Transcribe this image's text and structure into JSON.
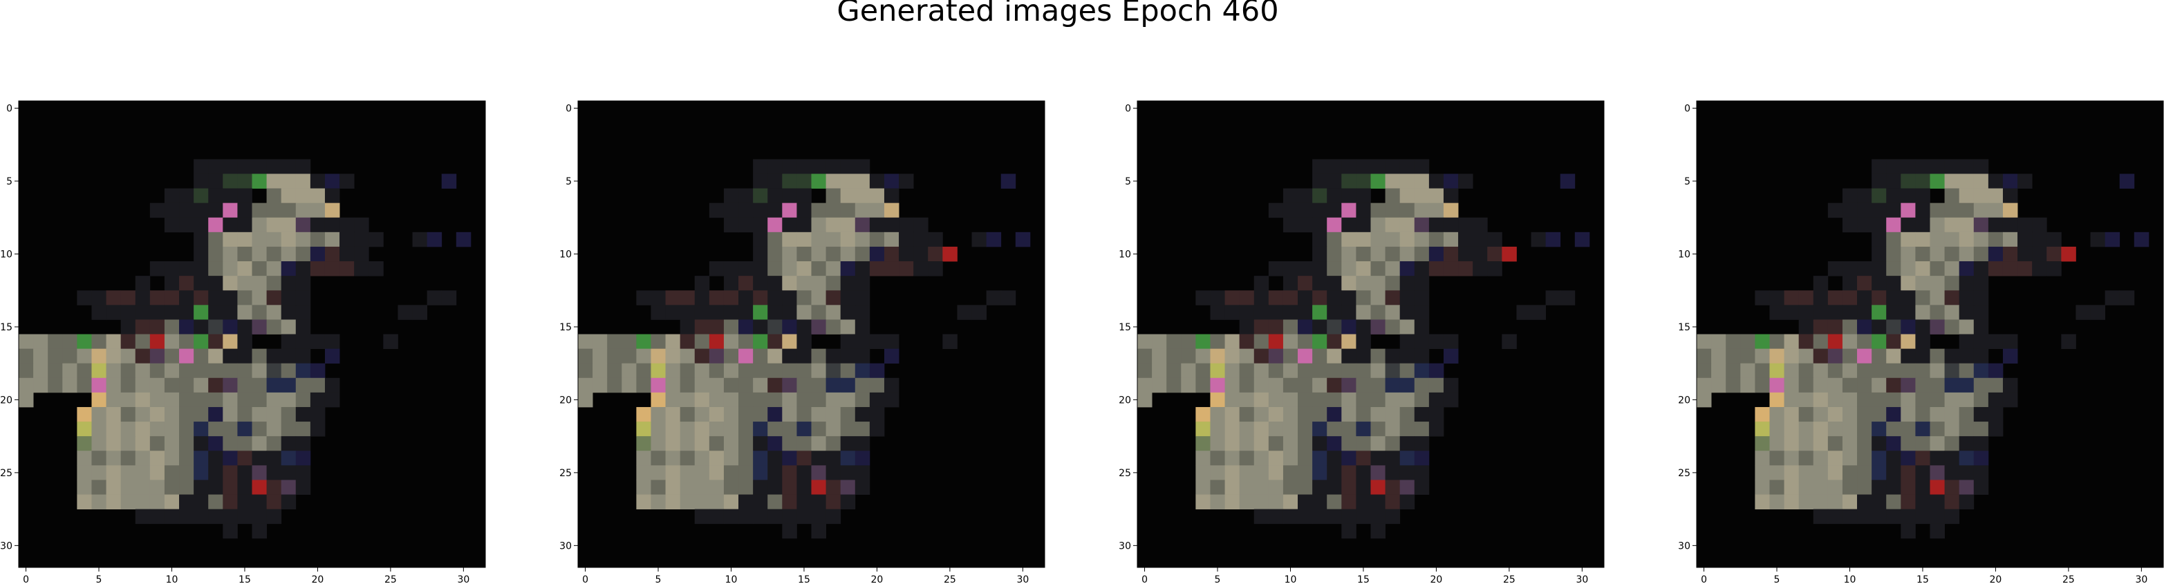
{
  "figure": {
    "suptitle": "Generated images Epoch 460"
  },
  "chart_data": {
    "type": "heatmap",
    "description_of_encoding": "",
    "grid_size": [
      32,
      32
    ],
    "xlim": [
      -0.5,
      31.5
    ],
    "ylim": [
      31.5,
      -0.5
    ],
    "x_ticks": [
      0,
      5,
      10,
      15,
      20,
      25,
      30
    ],
    "y_ticks": [
      0,
      5,
      10,
      15,
      20,
      25,
      30
    ],
    "grid": false,
    "panels": [
      {
        "name": "",
        "palette": [
          "#040404",
          "#1a1a1f",
          "#3a3d3f",
          "#6a6b5e",
          "#8e8d7c",
          "#a39d86",
          "#6f7f58",
          "#2d3f2c",
          "#3d2728",
          "#4e3a52",
          "#222a4b",
          "#1d1b3f",
          "#3f8f3e",
          "#c96aa9",
          "#c7ab7a",
          "#aa2020",
          "#b6b85a",
          "#d8b070",
          "#1e6f7a",
          "#2d1c12"
        ],
        "rows": [
          "00000000000000000000000000000000",
          "00000000000000000000000000000000",
          "00000000000000000000000000000000",
          "00000000000000000000000000000000",
          "00000000000011111111000000000000",
          "0000000000001177c5551b1000000b00",
          "00000000001171110355510000000000",
          "00000000011111d133344e0000000000",
          "0000000000111d1145591111000000000",
          "0000000000001355445434111001b0b0",
          "00000000000013434343b81100000000",
          "000000000111134534b18881100000000",
          "000000001018115443110000000000000",
          "000011881881811348110000000011000",
          "000001111111c1143411000000110000",
          "00000001883b12b19341000000000000",
          "4433c3583f43c8e1001111000100000",
          "34334e54893d351131110b0000000000",
          "34343g4343433333423ab00000000000",
          "44343d43443348933aa3310000000000",
          "40000h4454433343344311000000000",
          "0000h45345433b4344311000000000",
          "0000g4545443a33a343310000000000",
          "0000645453431b3343110000000000",
          "000043434543a1b811ab0000000000",
          "000044544533a1819111000000000",
          "0000435444331181f8910000000000",
          "0000545444511381181000000000000",
          "0000000011111111110000000000000",
          "00000000000000101000000000000000",
          "00000000000000000000000000000000",
          "00000000000000000000000000000000"
        ]
      },
      {
        "name": "",
        "palette": [
          "#040404",
          "#1a1a1f",
          "#3a3d3f",
          "#6a6b5e",
          "#8e8d7c",
          "#a39d86",
          "#6f7f58",
          "#2d3f2c",
          "#3d2728",
          "#4e3a52",
          "#222a4b",
          "#1d1b3f",
          "#3f8f3e",
          "#c96aa9",
          "#c7ab7a",
          "#aa2020",
          "#b6b85a",
          "#d8b070",
          "#1e6f7a",
          "#2d1c12"
        ],
        "rows": [
          "00000000000000000000000000000000",
          "00000000000000000000000000000000",
          "00000000000000000000000000000000",
          "00000000000000000000000000000000",
          "00000000000011111111000000000000",
          "0000000000001177c5551b1000000b00",
          "00000000001171110355510000000000",
          "00000000011111d133344e0000000000",
          "0000000000111d1145591111000000000",
          "0000000000001355445434111001b0b0",
          "00000000000013434343b8118f000000",
          "000000000111134534b18881100000000",
          "000000001018115443110000000000000",
          "000011881881811348110000000011000",
          "000001111111c1143411000000110000",
          "00000001883b12b19341000000000000",
          "4433c3583f43c8e1001111000100000",
          "34334e54893d351131110b0000000000",
          "34343g4343433333423ab00000000000",
          "44343d43443348933aa3310000000000",
          "40000h4454433343344311000000000",
          "0000h45345433b4344311000000000",
          "0000g4545443a33a343310000000000",
          "0000645453431b3343110000000000",
          "000043434543a1b811ab0000000000",
          "000044544533a1819111000000000",
          "0000435444331181f8910000000000",
          "0000545444511381181000000000000",
          "0000000011111111110000000000000",
          "00000000000000101000000000000000",
          "00000000000000000000000000000000",
          "00000000000000000000000000000000"
        ]
      },
      {
        "name": "",
        "palette": [
          "#040404",
          "#1a1a1f",
          "#3a3d3f",
          "#6a6b5e",
          "#8e8d7c",
          "#a39d86",
          "#6f7f58",
          "#2d3f2c",
          "#3d2728",
          "#4e3a52",
          "#222a4b",
          "#1d1b3f",
          "#3f8f3e",
          "#c96aa9",
          "#c7ab7a",
          "#aa2020",
          "#b6b85a",
          "#d8b070",
          "#1e6f7a",
          "#2d1c12"
        ],
        "rows": [
          "00000000000000000000000000000000",
          "00000000000000000000000000000000",
          "00000000000000000000000000000000",
          "00000000000000000000000000000000",
          "00000000000011111111000000000000",
          "0000000000001177c5551b1000000b00",
          "00000000001171110355510000000000",
          "00000000011111d133344e0000000000",
          "0000000000111d1145591111000000000",
          "0000000000001355445434111001b0b0",
          "00000000000013434343b8118f000000",
          "000000000111134534b18881100000000",
          "000000001018115443110000000000000",
          "000011881881811348110000000011000",
          "000001111111c1143411000000110000",
          "00000001883b12b19341000000000000",
          "4433c3583f43c8e1001111000100000",
          "34334e54893d351131110b0000000000",
          "34343g4343433333423ab00000000000",
          "44343d43443348933aa3310000000000",
          "40000h4454433343344311000000000",
          "0000h45345433b4344311000000000",
          "0000g4545443a33a343310000000000",
          "0000645453431b3343110000000000",
          "000043434543a1b811ab0000000000",
          "000044544533a1819111000000000",
          "0000435444331181f8910000000000",
          "0000545444511381181000000000000",
          "0000000011111111110000000000000",
          "00000000000000101000000000000000",
          "00000000000000000000000000000000",
          "00000000000000000000000000000000"
        ]
      },
      {
        "name": "",
        "palette": [
          "#040404",
          "#1a1a1f",
          "#3a3d3f",
          "#6a6b5e",
          "#8e8d7c",
          "#a39d86",
          "#6f7f58",
          "#2d3f2c",
          "#3d2728",
          "#4e3a52",
          "#222a4b",
          "#1d1b3f",
          "#3f8f3e",
          "#c96aa9",
          "#c7ab7a",
          "#aa2020",
          "#b6b85a",
          "#d8b070",
          "#1e6f7a",
          "#2d1c12"
        ],
        "rows": [
          "00000000000000000000000000000000",
          "00000000000000000000000000000000",
          "00000000000000000000000000000000",
          "00000000000000000000000000000000",
          "00000000000011111111000000000000",
          "0000000000001177c5551b1000000b00",
          "00000000001171110355510000000000",
          "00000000011111d133344e0000000000",
          "0000000000111d1145591111000000000",
          "0000000000001355445434111001b0b0",
          "00000000000013434343b8118f000000",
          "000000000111134534b18881100000000",
          "000000001018115443110000000000000",
          "000011881881811348110000000011000",
          "000001111111c1143411000000110000",
          "00000001883b12b19341000000000000",
          "4433c3583f43c8e1001111000100000",
          "34334e54893d351131110b0000000000",
          "34343g4343433333423ab00000000000",
          "44343d43443348933aa3310000000000",
          "40000h4454433343344311000000000",
          "0000h45345433b4344311000000000",
          "0000g4545443a33a343310000000000",
          "0000645453431b3343110000000000",
          "000043434543a1b811ab0000000000",
          "000044544533a1819111000000000",
          "0000435444331181f8910000000000",
          "0000545444511381181000000000000",
          "0000000011111111110000000000000",
          "00000000000000101000000000000000",
          "00000000000000000000000000000000",
          "00000000000000000000000000000000"
        ]
      }
    ]
  }
}
